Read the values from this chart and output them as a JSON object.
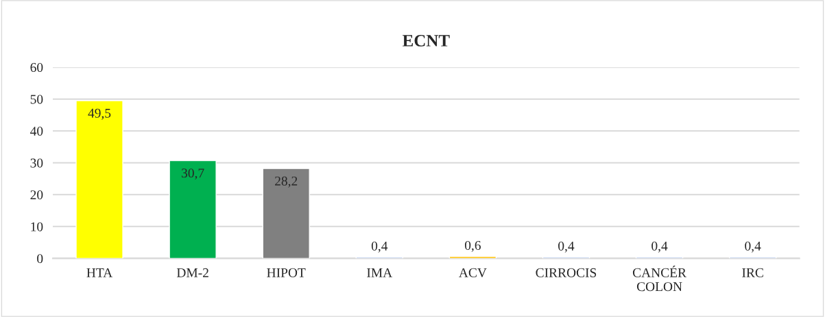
{
  "chart_data": {
    "type": "bar",
    "title": "ECNT",
    "categories": [
      "HTA",
      "DM-2",
      "HIPOT",
      "IMA",
      "ACV",
      "CIRROCIS",
      "CANCÉR\nCOLON",
      "IRC"
    ],
    "values": [
      49.5,
      30.7,
      28.2,
      0.4,
      0.6,
      0.4,
      0.4,
      0.4
    ],
    "value_labels": [
      "49,5",
      "30,7",
      "28,2",
      "0,4",
      "0,6",
      "0,4",
      "0,4",
      "0,4"
    ],
    "colors": [
      "#ffff00",
      "#00b050",
      "#808080",
      "#8faadc",
      "#ffc000",
      "#8faadc",
      "#8faadc",
      "#8faadc"
    ],
    "ylim": [
      0,
      60
    ],
    "yticks": [
      0,
      10,
      20,
      30,
      40,
      50,
      60
    ],
    "grid": "y"
  }
}
